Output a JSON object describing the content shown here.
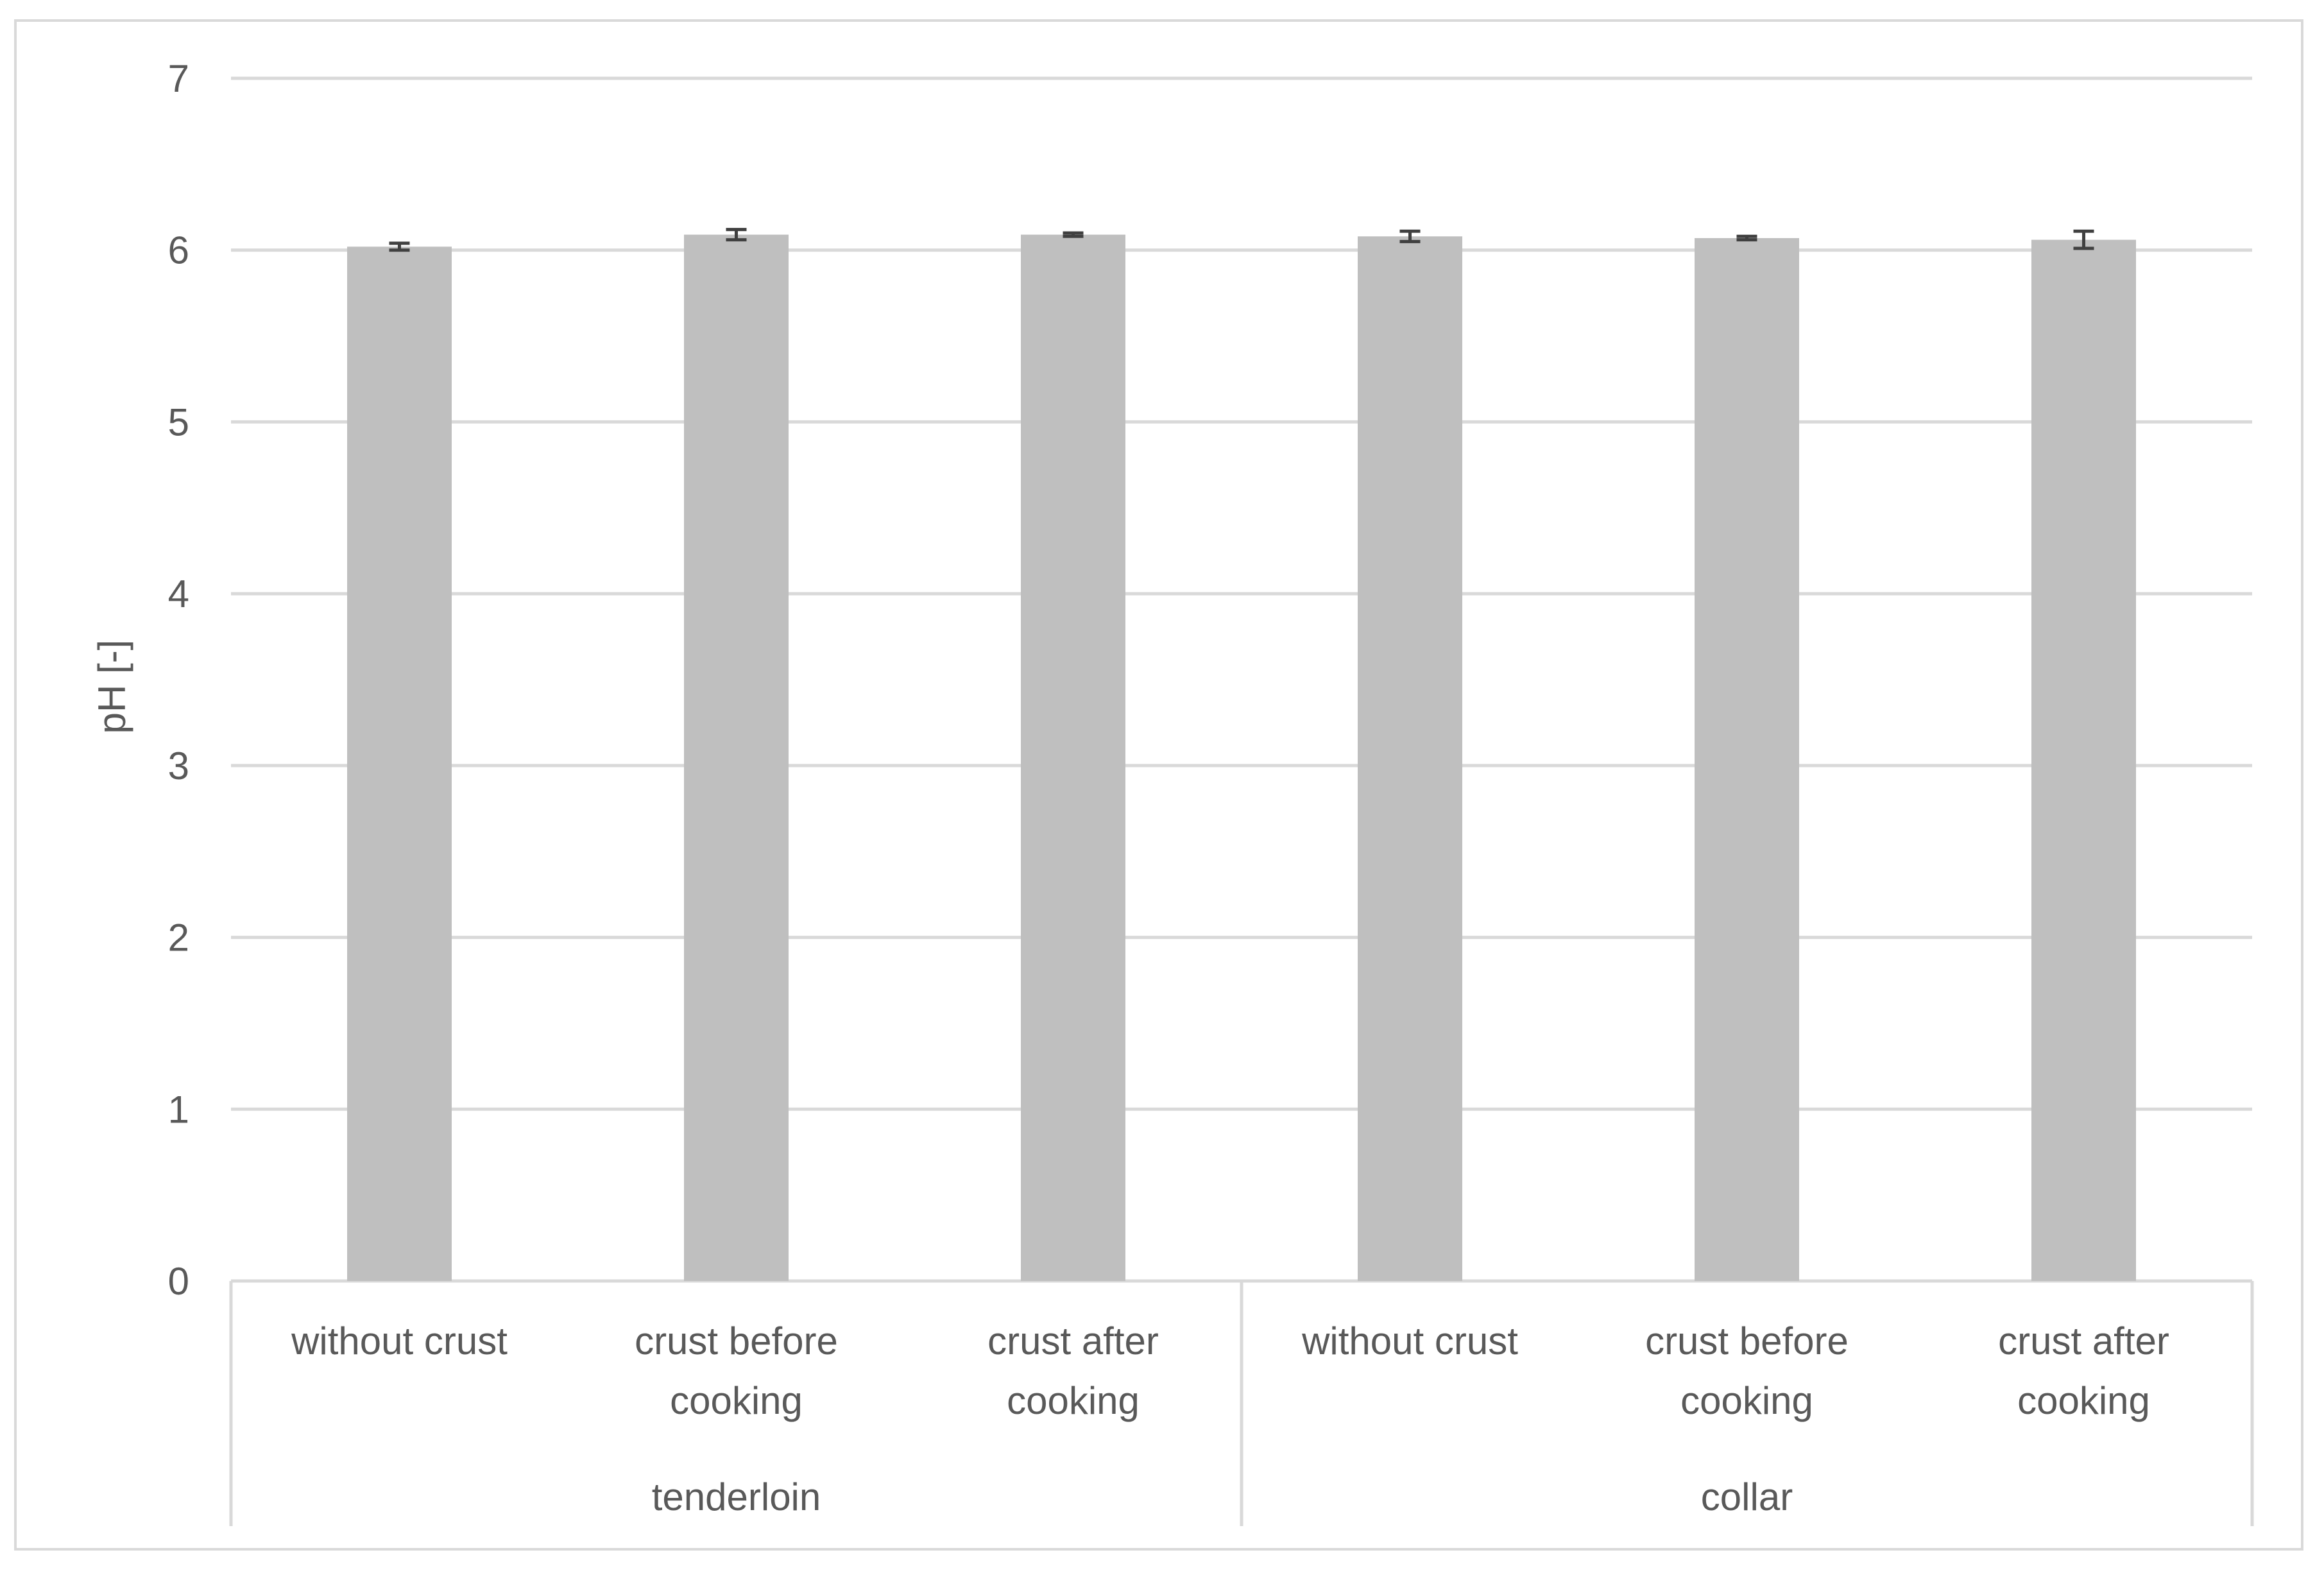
{
  "chart_data": {
    "type": "bar",
    "title": "",
    "xlabel": "",
    "ylabel": "pH [-]",
    "ylim": [
      0,
      7
    ],
    "yticks": [
      "0",
      "1",
      "2",
      "3",
      "4",
      "5",
      "6",
      "7"
    ],
    "categories": [
      {
        "label_lines": [
          "without crust"
        ],
        "group": "tenderloin"
      },
      {
        "label_lines": [
          "crust before",
          "cooking"
        ],
        "group": "tenderloin"
      },
      {
        "label_lines": [
          "crust after",
          "cooking"
        ],
        "group": "tenderloin"
      },
      {
        "label_lines": [
          "without crust"
        ],
        "group": "collar"
      },
      {
        "label_lines": [
          "crust before",
          "cooking"
        ],
        "group": "collar"
      },
      {
        "label_lines": [
          "crust after",
          "cooking"
        ],
        "group": "collar"
      }
    ],
    "groups": [
      "tenderloin",
      "collar"
    ],
    "values": [
      6.02,
      6.09,
      6.09,
      6.08,
      6.07,
      6.06
    ],
    "error": [
      0.02,
      0.03,
      0.01,
      0.03,
      0.01,
      0.05
    ],
    "grid": true,
    "legend": "none",
    "colors": {
      "bar": "#bfbfbf",
      "grid": "#d9d9d9",
      "error_bar": "#404040",
      "text": "#595959",
      "frame": "#d9d9d9"
    }
  }
}
